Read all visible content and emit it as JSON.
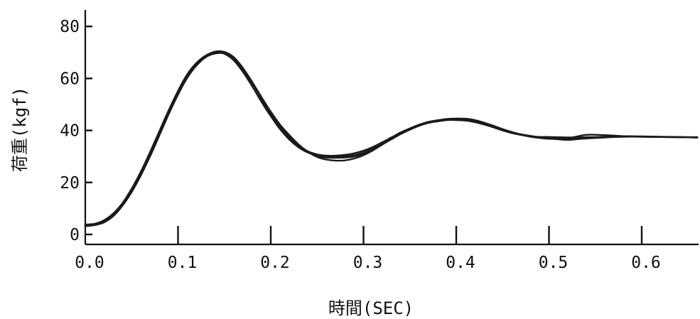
{
  "chart_data": {
    "type": "line",
    "xlabel": "時間(SEC)",
    "ylabel": "荷重(kgf)",
    "xlim": [
      0.0,
      0.66
    ],
    "ylim": [
      0,
      87
    ],
    "x_ticks": [
      "0.0",
      "0.1",
      "0.2",
      "0.3",
      "0.4",
      "0.5",
      "0.6"
    ],
    "y_ticks": [
      "0",
      "20",
      "40",
      "60",
      "80"
    ],
    "grid": false,
    "series": [
      {
        "x": [
          0.0,
          0.01,
          0.02,
          0.03,
          0.04,
          0.05,
          0.06,
          0.07,
          0.08,
          0.09,
          0.1,
          0.11,
          0.12,
          0.13,
          0.14,
          0.15,
          0.16,
          0.17,
          0.18,
          0.19,
          0.2,
          0.21,
          0.22,
          0.23,
          0.24,
          0.25,
          0.26,
          0.27,
          0.28,
          0.29,
          0.3,
          0.31,
          0.32,
          0.33,
          0.34,
          0.35,
          0.36,
          0.37,
          0.38,
          0.39,
          0.4,
          0.41,
          0.42,
          0.43,
          0.44,
          0.45,
          0.46,
          0.47,
          0.48,
          0.49,
          0.5,
          0.52,
          0.54,
          0.56,
          0.58,
          0.6,
          0.62,
          0.64,
          0.66
        ],
        "y": [
          3.5,
          3.8,
          5.0,
          7.5,
          11.5,
          17.0,
          23.5,
          31.0,
          39.0,
          47.0,
          54.5,
          61.0,
          65.5,
          68.5,
          70.0,
          69.5,
          67.0,
          62.5,
          57.0,
          51.0,
          45.5,
          40.5,
          36.5,
          33.5,
          31.5,
          30.5,
          30.0,
          30.0,
          30.0,
          30.5,
          31.5,
          33.0,
          35.0,
          37.0,
          39.0,
          40.5,
          42.0,
          43.0,
          43.5,
          44.0,
          44.0,
          43.8,
          43.2,
          42.3,
          41.2,
          40.0,
          39.0,
          38.3,
          37.8,
          37.5,
          37.5,
          37.3,
          37.4,
          37.5,
          37.6,
          37.6,
          37.5,
          37.4,
          37.3
        ]
      },
      {
        "x": [
          0.0,
          0.01,
          0.02,
          0.03,
          0.04,
          0.05,
          0.06,
          0.07,
          0.08,
          0.09,
          0.1,
          0.11,
          0.12,
          0.13,
          0.14,
          0.15,
          0.16,
          0.17,
          0.18,
          0.19,
          0.2,
          0.21,
          0.22,
          0.23,
          0.24,
          0.25,
          0.26,
          0.27,
          0.28,
          0.29,
          0.3,
          0.31,
          0.32,
          0.33,
          0.34,
          0.35,
          0.36,
          0.37,
          0.38,
          0.39,
          0.4,
          0.41,
          0.42,
          0.43,
          0.44,
          0.45,
          0.46,
          0.47,
          0.48,
          0.49,
          0.5,
          0.52,
          0.54,
          0.56,
          0.58,
          0.6,
          0.62,
          0.64,
          0.66
        ],
        "y": [
          3.2,
          3.6,
          4.6,
          7.0,
          11.0,
          16.3,
          22.8,
          30.2,
          38.2,
          46.3,
          53.8,
          60.3,
          65.0,
          68.2,
          69.6,
          69.6,
          67.6,
          63.4,
          58.2,
          52.4,
          46.8,
          41.8,
          37.6,
          34.2,
          32.0,
          30.8,
          30.3,
          30.3,
          30.6,
          31.2,
          32.2,
          33.6,
          35.4,
          37.3,
          39.2,
          40.8,
          42.2,
          43.3,
          43.9,
          44.4,
          44.6,
          44.5,
          44.0,
          43.0,
          41.8,
          40.5,
          39.4,
          38.5,
          37.9,
          37.4,
          37.0,
          36.4,
          37.0,
          37.6,
          37.8,
          37.7,
          37.6,
          37.5,
          37.4
        ]
      },
      {
        "x": [
          0.0,
          0.01,
          0.02,
          0.03,
          0.04,
          0.05,
          0.06,
          0.07,
          0.08,
          0.09,
          0.1,
          0.11,
          0.12,
          0.13,
          0.14,
          0.15,
          0.16,
          0.17,
          0.18,
          0.19,
          0.2,
          0.21,
          0.22,
          0.23,
          0.24,
          0.25,
          0.26,
          0.27,
          0.28,
          0.29,
          0.3,
          0.31,
          0.32,
          0.33,
          0.34,
          0.35,
          0.36,
          0.37,
          0.38,
          0.39,
          0.4,
          0.41,
          0.42,
          0.43,
          0.44,
          0.45,
          0.46,
          0.47,
          0.48,
          0.49,
          0.5,
          0.52,
          0.54,
          0.56,
          0.58,
          0.6,
          0.62,
          0.64,
          0.66
        ],
        "y": [
          3.8,
          4.1,
          5.4,
          8.0,
          12.0,
          17.6,
          24.2,
          31.8,
          39.8,
          47.8,
          55.2,
          61.6,
          66.0,
          68.8,
          70.3,
          70.2,
          68.2,
          64.0,
          58.6,
          52.8,
          47.2,
          42.2,
          38.2,
          34.6,
          31.8,
          29.8,
          28.8,
          28.4,
          28.5,
          29.2,
          30.5,
          32.3,
          34.5,
          36.7,
          38.8,
          40.6,
          42.1,
          43.2,
          43.9,
          44.3,
          44.3,
          44.1,
          43.5,
          42.5,
          41.3,
          40.1,
          39.1,
          38.3,
          37.6,
          37.1,
          36.8,
          36.6,
          36.9,
          37.3,
          37.6,
          37.6,
          37.5,
          37.4,
          37.3
        ]
      },
      {
        "x": [
          0.0,
          0.01,
          0.02,
          0.03,
          0.04,
          0.05,
          0.06,
          0.07,
          0.08,
          0.09,
          0.1,
          0.11,
          0.12,
          0.13,
          0.14,
          0.15,
          0.16,
          0.17,
          0.18,
          0.19,
          0.2,
          0.21,
          0.22,
          0.23,
          0.24,
          0.25,
          0.26,
          0.27,
          0.28,
          0.29,
          0.3,
          0.31,
          0.32,
          0.33,
          0.34,
          0.35,
          0.36,
          0.37,
          0.38,
          0.39,
          0.4,
          0.41,
          0.42,
          0.43,
          0.44,
          0.45,
          0.46,
          0.47,
          0.48,
          0.49,
          0.5,
          0.52,
          0.54,
          0.56,
          0.58,
          0.6,
          0.62,
          0.64,
          0.66
        ],
        "y": [
          3.6,
          3.9,
          5.1,
          7.6,
          11.3,
          16.6,
          23.0,
          30.5,
          38.6,
          46.6,
          54.0,
          60.6,
          65.3,
          68.3,
          69.8,
          69.9,
          68.0,
          63.8,
          58.6,
          52.2,
          46.2,
          41.2,
          37.0,
          33.8,
          31.6,
          30.2,
          29.6,
          29.5,
          29.6,
          30.0,
          31.0,
          32.6,
          34.6,
          36.6,
          38.6,
          40.3,
          41.8,
          42.9,
          43.6,
          44.1,
          44.3,
          44.2,
          43.7,
          42.8,
          41.6,
          40.3,
          39.2,
          38.4,
          37.8,
          37.3,
          37.1,
          37.0,
          38.3,
          38.2,
          37.8,
          37.6,
          37.5,
          37.4,
          37.3
        ]
      }
    ]
  }
}
